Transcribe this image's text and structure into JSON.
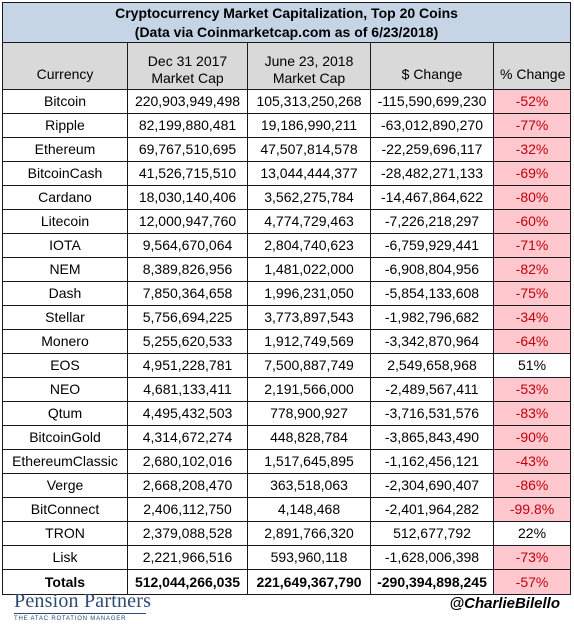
{
  "chart_data": {
    "type": "table",
    "title": "Cryptocurrency Market Capitalization, Top 20 Coins",
    "subtitle": "(Data via Coinmarketcap.com as of 6/23/2018)",
    "columns": [
      {
        "line1": "",
        "line2": "Currency"
      },
      {
        "line1": "Dec 31 2017",
        "line2": "Market Cap"
      },
      {
        "line1": "June 23, 2018",
        "line2": "Market Cap"
      },
      {
        "line1": "",
        "line2": "$ Change"
      },
      {
        "line1": "",
        "line2": "% Change"
      }
    ],
    "rows": [
      {
        "currency": "Bitcoin",
        "dec_2017": "220,903,949,498",
        "jun_2018": "105,313,250,268",
        "change": "-115,590,699,230",
        "pct": "-52%",
        "dir": "neg"
      },
      {
        "currency": "Ripple",
        "dec_2017": "82,199,880,481",
        "jun_2018": "19,186,990,211",
        "change": "-63,012,890,270",
        "pct": "-77%",
        "dir": "neg"
      },
      {
        "currency": "Ethereum",
        "dec_2017": "69,767,510,695",
        "jun_2018": "47,507,814,578",
        "change": "-22,259,696,117",
        "pct": "-32%",
        "dir": "neg"
      },
      {
        "currency": "BitcoinCash",
        "dec_2017": "41,526,715,510",
        "jun_2018": "13,044,444,377",
        "change": "-28,482,271,133",
        "pct": "-69%",
        "dir": "neg"
      },
      {
        "currency": "Cardano",
        "dec_2017": "18,030,140,406",
        "jun_2018": "3,562,275,784",
        "change": "-14,467,864,622",
        "pct": "-80%",
        "dir": "neg"
      },
      {
        "currency": "Litecoin",
        "dec_2017": "12,000,947,760",
        "jun_2018": "4,774,729,463",
        "change": "-7,226,218,297",
        "pct": "-60%",
        "dir": "neg"
      },
      {
        "currency": "IOTA",
        "dec_2017": "9,564,670,064",
        "jun_2018": "2,804,740,623",
        "change": "-6,759,929,441",
        "pct": "-71%",
        "dir": "neg"
      },
      {
        "currency": "NEM",
        "dec_2017": "8,389,826,956",
        "jun_2018": "1,481,022,000",
        "change": "-6,908,804,956",
        "pct": "-82%",
        "dir": "neg"
      },
      {
        "currency": "Dash",
        "dec_2017": "7,850,364,658",
        "jun_2018": "1,996,231,050",
        "change": "-5,854,133,608",
        "pct": "-75%",
        "dir": "neg"
      },
      {
        "currency": "Stellar",
        "dec_2017": "5,756,694,225",
        "jun_2018": "3,773,897,543",
        "change": "-1,982,796,682",
        "pct": "-34%",
        "dir": "neg"
      },
      {
        "currency": "Monero",
        "dec_2017": "5,255,620,533",
        "jun_2018": "1,912,749,569",
        "change": "-3,342,870,964",
        "pct": "-64%",
        "dir": "neg"
      },
      {
        "currency": "EOS",
        "dec_2017": "4,951,228,781",
        "jun_2018": "7,500,887,749",
        "change": "2,549,658,968",
        "pct": "51%",
        "dir": "pos"
      },
      {
        "currency": "NEO",
        "dec_2017": "4,681,133,411",
        "jun_2018": "2,191,566,000",
        "change": "-2,489,567,411",
        "pct": "-53%",
        "dir": "neg"
      },
      {
        "currency": "Qtum",
        "dec_2017": "4,495,432,503",
        "jun_2018": "778,900,927",
        "change": "-3,716,531,576",
        "pct": "-83%",
        "dir": "neg"
      },
      {
        "currency": "BitcoinGold",
        "dec_2017": "4,314,672,274",
        "jun_2018": "448,828,784",
        "change": "-3,865,843,490",
        "pct": "-90%",
        "dir": "neg"
      },
      {
        "currency": "EthereumClassic",
        "dec_2017": "2,680,102,016",
        "jun_2018": "1,517,645,895",
        "change": "-1,162,456,121",
        "pct": "-43%",
        "dir": "neg"
      },
      {
        "currency": "Verge",
        "dec_2017": "2,668,208,470",
        "jun_2018": "363,518,063",
        "change": "-2,304,690,407",
        "pct": "-86%",
        "dir": "neg"
      },
      {
        "currency": "BitConnect",
        "dec_2017": "2,406,112,750",
        "jun_2018": "4,148,468",
        "change": "-2,401,964,282",
        "pct": "-99.8%",
        "dir": "neg"
      },
      {
        "currency": "TRON",
        "dec_2017": "2,379,088,528",
        "jun_2018": "2,891,766,320",
        "change": "512,677,792",
        "pct": "22%",
        "dir": "pos"
      },
      {
        "currency": "Lisk",
        "dec_2017": "2,221,966,516",
        "jun_2018": "593,960,118",
        "change": "-1,628,006,398",
        "pct": "-73%",
        "dir": "neg"
      }
    ],
    "totals": {
      "label": "Totals",
      "dec_2017": "512,044,266,035",
      "jun_2018": "221,649,367,790",
      "change": "-290,394,898,245",
      "pct": "-57%",
      "dir": "neg"
    }
  },
  "footer": {
    "brand": "Pension Partners",
    "brand_tagline": "THE ATAC ROTATION MANAGER",
    "handle": "@CharlieBilello"
  },
  "colors": {
    "title_bg": "#c5d5e6",
    "header_bg": "#d9d9d9",
    "negative_bg": "#ffc7ce",
    "negative_text": "#c0000a",
    "brand": "#2d4a73"
  }
}
